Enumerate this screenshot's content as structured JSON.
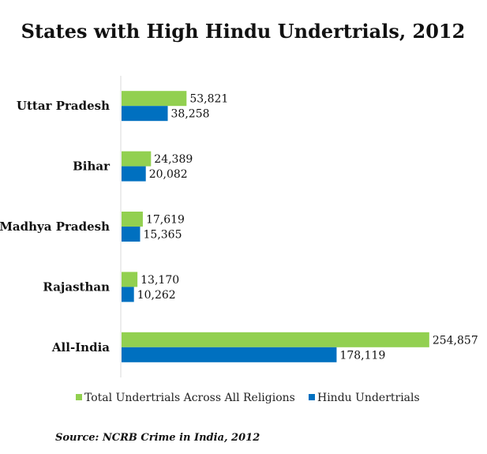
{
  "chart_data": {
    "type": "bar",
    "orientation": "horizontal",
    "title": "States with High Hindu Undertrials, 2012",
    "categories": [
      "Uttar Pradesh",
      "Bihar",
      "Madhya Pradesh",
      "Rajasthan",
      "All-India"
    ],
    "series": [
      {
        "name": "Total Undertrials Across All Religions",
        "color": "#92d050",
        "values": [
          53821,
          24389,
          17619,
          13170,
          254857
        ],
        "labels": [
          "53,821",
          "24,389",
          "17,619",
          "13,170",
          "254,857"
        ]
      },
      {
        "name": "Hindu Undertrials",
        "color": "#0070c0",
        "values": [
          38258,
          20082,
          15365,
          10262,
          178119
        ],
        "labels": [
          "38,258",
          "20,082",
          "15,365",
          "10,262",
          "178,119"
        ]
      }
    ],
    "xlim": [
      0,
      270000
    ],
    "grid": false,
    "legend_position": "bottom",
    "source": "Source: NCRB Crime in India, 2012"
  }
}
